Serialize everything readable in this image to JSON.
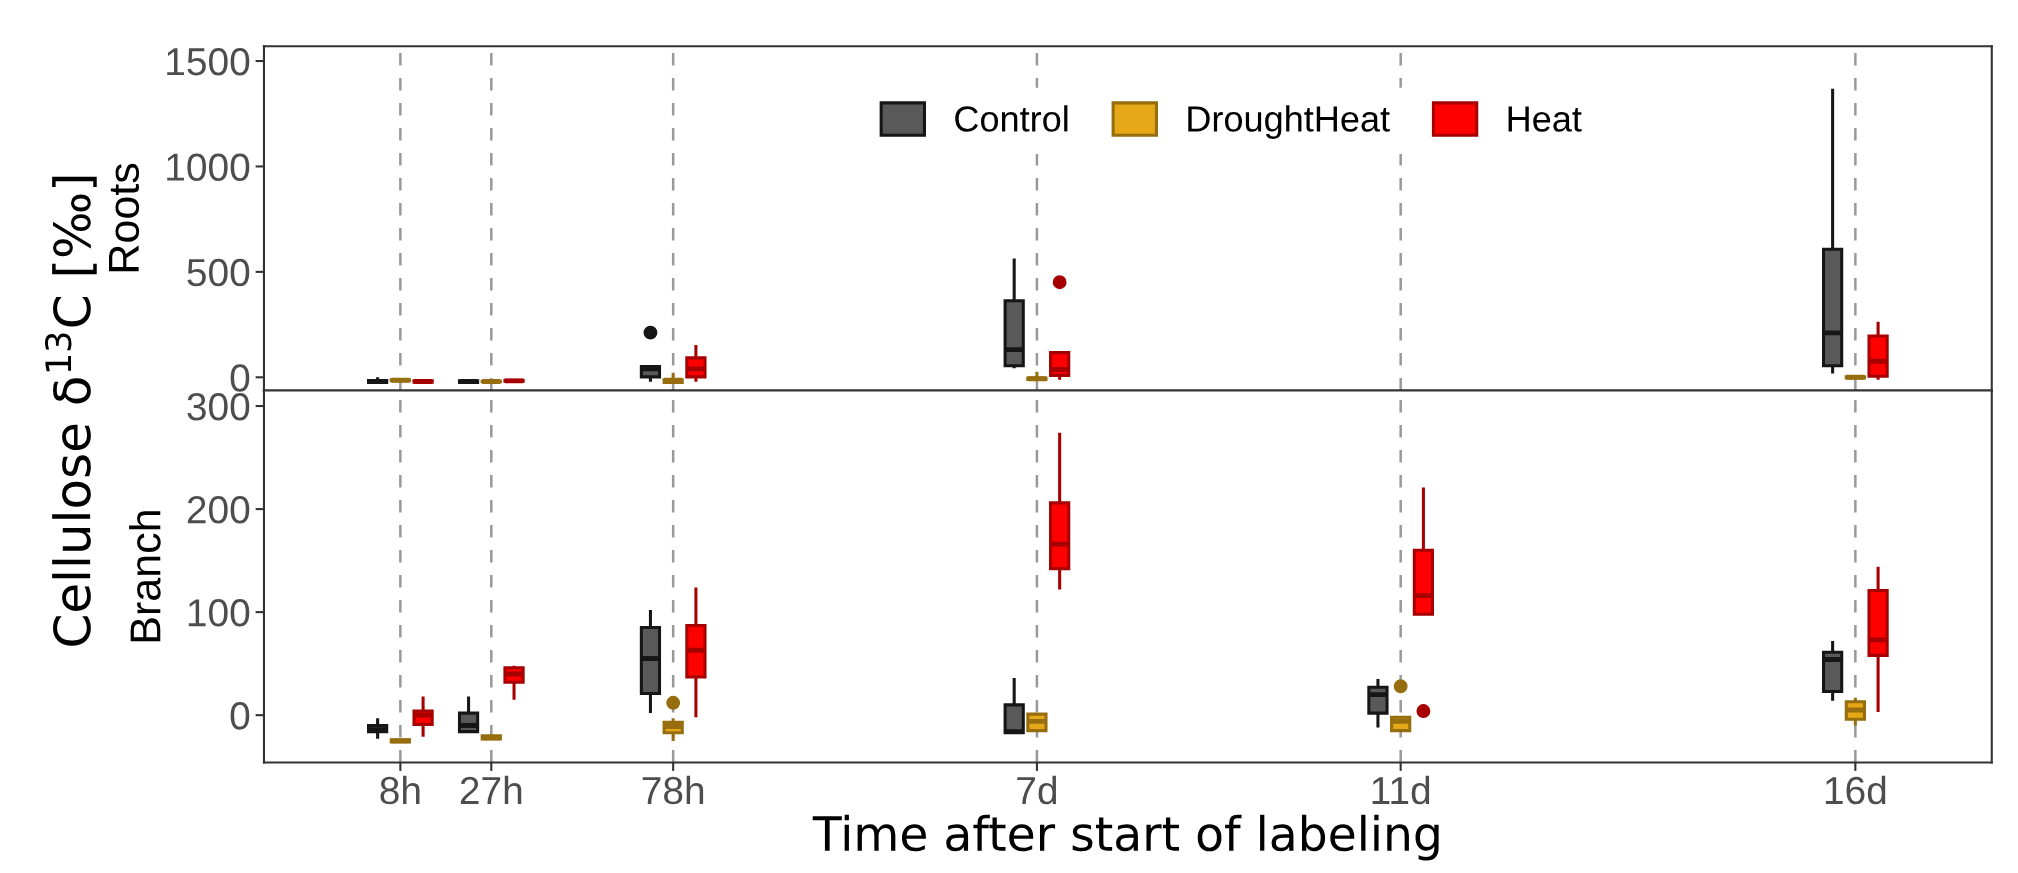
{
  "chart_data": [
    {
      "type": "box",
      "ylabel": "Roots",
      "annotations": [
        "Cellulose δ$^{13}$C [‰]"
      ],
      "categories": [
        null,
        null,
        null,
        null,
        null,
        null,
        null,
        null,
        null,
        null,
        null,
        null,
        null,
        null,
        null,
        null,
        null,
        null,
        null
      ],
      "ylim": [
        -63,
        1570
      ],
      "yticks": [
        0,
        500,
        1000,
        1500
      ],
      "tick_labels": "y",
      "grid": "x",
      "legend": "top",
      "series": [
        {
          "name": "Control",
          "color": "#595959",
          "boxes": [
            null,
            {
              "low": -25,
              "q1": -25,
              "median": -20,
              "q3": -15,
              "high": 0
            },
            {
              "low": -25,
              "q1": -25,
              "median": -20,
              "q3": -17,
              "high": -17
            },
            null,
            {
              "low": -21,
              "q1": 2,
              "median": 40,
              "q3": 51,
              "high": 58,
              "outliers": [
                212
              ]
            },
            null,
            null,
            null,
            {
              "low": 43,
              "q1": 55,
              "median": 131,
              "q3": 363,
              "high": 563
            },
            null,
            null,
            null,
            null,
            null,
            null,
            null,
            null,
            {
              "low": 18,
              "q1": 55,
              "median": 211,
              "q3": 607,
              "high": 1369
            },
            null
          ]
        },
        {
          "name": "DroughtHeat",
          "color": "#e6a817",
          "boxes": [
            null,
            {
              "low": -16,
              "q1": -16,
              "median": -14,
              "q3": -12,
              "high": -12
            },
            {
              "low": -21,
              "q1": -21,
              "median": -20,
              "q3": -19,
              "high": -19
            },
            null,
            {
              "low": -25,
              "q1": -25,
              "median": -14,
              "q3": -12,
              "high": 22
            },
            null,
            null,
            null,
            {
              "low": -12,
              "q1": -10,
              "median": -7,
              "q3": -4,
              "high": 26
            },
            null,
            null,
            null,
            null,
            null,
            null,
            null,
            null,
            {
              "low": -5,
              "q1": -3,
              "median": 0,
              "q3": 2,
              "high": 5
            },
            null
          ]
        },
        {
          "name": "Heat",
          "color": "#ff0000",
          "boxes": [
            null,
            {
              "low": -23,
              "q1": -23,
              "median": -20,
              "q3": -17,
              "high": -17
            },
            {
              "low": -19,
              "q1": -19,
              "median": -17,
              "q3": -14,
              "high": -14
            },
            null,
            {
              "low": -21,
              "q1": 2,
              "median": 40,
              "q3": 92,
              "high": 153
            },
            null,
            null,
            null,
            {
              "low": -12,
              "q1": 9,
              "median": 37,
              "q3": 117,
              "high": 117,
              "outliers": [
                451
              ]
            },
            null,
            null,
            null,
            null,
            null,
            null,
            null,
            null,
            {
              "low": -12,
              "q1": 5,
              "median": 76,
              "q3": 196,
              "high": 263
            },
            null
          ]
        }
      ]
    },
    {
      "type": "box",
      "ylabel": "Branch",
      "xlabel": "Time after start of labeling",
      "categories": [
        null,
        "8h",
        "27h",
        null,
        "78h",
        null,
        null,
        null,
        "7d",
        null,
        null,
        null,
        "11d",
        null,
        null,
        null,
        null,
        "16d",
        null
      ],
      "ylim": [
        -46,
        315
      ],
      "yticks": [
        0,
        100,
        200,
        300
      ],
      "grid": "x",
      "series": [
        {
          "color": "#595959",
          "boxes": [
            null,
            {
              "low": -23,
              "q1": -16,
              "median": -14,
              "q3": -10,
              "high": -3
            },
            {
              "low": -16,
              "q1": -16,
              "median": -10,
              "q3": 2,
              "high": 18
            },
            null,
            {
              "low": 2,
              "q1": 21,
              "median": 55,
              "q3": 85,
              "high": 102
            },
            null,
            null,
            null,
            {
              "low": -18,
              "q1": -17,
              "median": -16,
              "q3": 10,
              "high": 36
            },
            null,
            null,
            null,
            {
              "low": -12,
              "q1": 2,
              "median": 20,
              "q3": 27,
              "high": 35
            },
            null,
            null,
            null,
            null,
            {
              "low": 14,
              "q1": 23,
              "median": 54,
              "q3": 61,
              "high": 72
            },
            null
          ]
        },
        {
          "color": "#e6a817",
          "boxes": [
            null,
            {
              "low": -26,
              "q1": -26,
              "median": -25,
              "q3": -24,
              "high": -24
            },
            {
              "low": -23,
              "q1": -23,
              "median": -22,
              "q3": -20,
              "high": -20
            },
            null,
            {
              "low": -25,
              "q1": -17,
              "median": -11,
              "q3": -7,
              "high": -3,
              "outliers": [
                12
              ]
            },
            null,
            null,
            null,
            {
              "low": -15,
              "q1": -15,
              "median": -6,
              "q3": 1,
              "high": 1
            },
            null,
            null,
            null,
            {
              "low": -15,
              "q1": -15,
              "median": -6,
              "q3": -2,
              "high": -2,
              "outliers": [
                28
              ]
            },
            null,
            null,
            null,
            null,
            {
              "low": -10,
              "q1": -4,
              "median": 5,
              "q3": 13,
              "high": 17
            },
            null
          ]
        },
        {
          "color": "#ff0000",
          "boxes": [
            null,
            {
              "low": -21,
              "q1": -9,
              "median": 0,
              "q3": 4,
              "high": 18
            },
            {
              "low": 15,
              "q1": 32,
              "median": 40,
              "q3": 46,
              "high": 48
            },
            null,
            {
              "low": -2,
              "q1": 37,
              "median": 63,
              "q3": 87,
              "high": 124
            },
            null,
            null,
            null,
            {
              "low": 122,
              "q1": 142,
              "median": 166,
              "q3": 206,
              "high": 274
            },
            null,
            null,
            null,
            {
              "low": 98,
              "q1": 98,
              "median": 116,
              "q3": 160,
              "high": 221,
              "outliers": [
                4
              ]
            },
            null,
            null,
            null,
            null,
            {
              "low": 3,
              "q1": 58,
              "median": 73,
              "q3": 121,
              "high": 144
            },
            null
          ]
        }
      ]
    }
  ]
}
